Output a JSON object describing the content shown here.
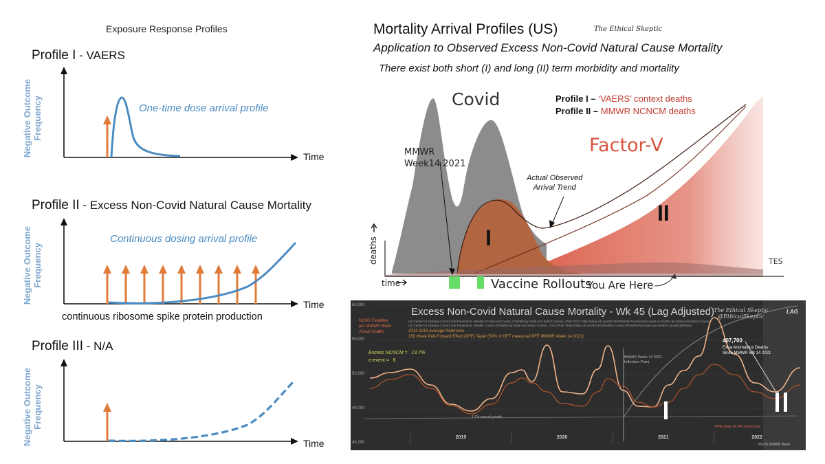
{
  "left": {
    "header": "Exposure Response Profiles",
    "y_axis_label": [
      "Negative Outcome",
      "Frequency"
    ],
    "time_label": "Time",
    "profiles": [
      {
        "title_main": "Profile I",
        "title_rest": " - VAERS",
        "curve_label": "One-time dose arrival profile"
      },
      {
        "title_main": "Profile II",
        "title_rest": " - Excess Non-Covid Natural Cause Mortality",
        "curve_label": "Continuous dosing arrival profile",
        "caption": "continuous ribosome spike protein production"
      },
      {
        "title_main": "Profile III",
        "title_rest": " - N/A"
      }
    ],
    "colors": {
      "curve": "#4a8bc2",
      "arrow": "#e07b39",
      "axis": "#111111"
    }
  },
  "right_top": {
    "title": "Mortality Arrival Profiles (US)",
    "brand": "The Ethical Skeptic",
    "subtitle": "Application to Observed Excess Non-Covid Natural Cause Mortality",
    "note": "There exist both short (I) and long (II) term morbidity and mortality",
    "covid_label": "Covid",
    "legend": [
      {
        "prefix": "Profile I – ",
        "text": "‘VAERS’ context deaths"
      },
      {
        "prefix": "Profile II – ",
        "text": "MMWR NCNCM deaths"
      }
    ],
    "factor_label": "Factor-V",
    "mmwr_label": [
      "MMWR",
      "Week14 2021"
    ],
    "trend_label": [
      "Actual Observed",
      "Arrival Trend"
    ],
    "region_I": "I",
    "region_II": "II",
    "y_axis": "deaths",
    "x_axis": "time",
    "tes": "TES",
    "vaccine_label": "Vaccine Rollouts",
    "here_label": "You Are Here",
    "colors": {
      "covid": "#8c8c8c",
      "profile_I": "#b4623a",
      "factor_v": "#d9543f",
      "legend_red": "#c0392b",
      "rollout": "#66dd66"
    }
  },
  "bottom": {
    "title": "Excess Non-Covid Natural Cause Mortality - Wk 45 (Lag Adjusted)",
    "brand": [
      "The Ethical Skeptic",
      "@EthicalSkeptic"
    ],
    "lag": "LAG",
    "source_lines": [
      "US Center for Disease Control and Prevention: Weekly Provisional Counts of Deaths by State and Select Causes, 2020-2022; https://data.cdc.gov/NCHS/Weekly-Provisional-Counts-of-Deaths-by-State-and-Select-Causes",
      "US Center for Disease Control and Prevention: Weekly Counts of Deaths by State and Select Causes, 2014-2019; https://data.cdc.gov/NCHS/Weekly-Counts-of-Deaths-by-State-and-Select-Causes/3yf8-kanr"
    ],
    "ref_line": "2014-2019 Average Reference",
    "pfe_line": "150 Week Pull-Forward Effect (PFE) Taper (50% of OFT measured PFE MMWR Week 14 2021)",
    "y_title": [
      "NCHS Fatalities",
      "per MMWR Week",
      "Actual Deaths"
    ],
    "excess_label": "Excess NCNCM =",
    "excess_value": "13.7%",
    "sigma_label": "σ-event =",
    "sigma_value": "6",
    "mmwr_label": [
      "MMWR Week 14 2021",
      "Inflection Point"
    ],
    "callout_value": "407,700",
    "callout_text": [
      "Extra Anomalous Deaths",
      "Since MMWR Wk 14 2021"
    ],
    "growth_label": "1.1% annual growth",
    "pfe_only": "PFE Only 14.8% of Excess",
    "source_footer": "NCHS MMWR Week",
    "marker_I": "I",
    "marker_II": "II"
  },
  "chart_data": [
    {
      "type": "line",
      "title": "Excess Non-Covid Natural Cause Mortality - Wk 45 (Lag Adjusted)",
      "ylabel": "NCHS Fatalities per MMWR Week Actual Deaths",
      "ylim": [
        43000,
        63000
      ],
      "yticks": [
        "63,000",
        "58,000",
        "53,000",
        "48,000",
        "43,000"
      ],
      "categories": [
        "2019",
        "2020",
        "2021",
        "2022"
      ],
      "x": [
        2018.6,
        2018.8,
        2019.0,
        2019.2,
        2019.4,
        2019.6,
        2019.8,
        2020.0,
        2020.1,
        2020.2,
        2020.35,
        2020.5,
        2020.7,
        2020.85,
        2020.95,
        2021.1,
        2021.25,
        2021.4,
        2021.55,
        2021.7,
        2021.85,
        2022.0,
        2022.2,
        2022.4,
        2022.6,
        2022.85
      ],
      "series": [
        {
          "name": "Actual Deaths",
          "values": [
            52500,
            53300,
            53800,
            51500,
            48700,
            47700,
            49500,
            53300,
            53700,
            52000,
            57300,
            50500,
            50200,
            53800,
            57200,
            50700,
            48400,
            48300,
            51500,
            53600,
            55700,
            61300,
            56000,
            51800,
            50500,
            54000
          ]
        },
        {
          "name": "2014-2019 Average Reference",
          "values": [
            51000,
            52300,
            53000,
            51000,
            48500,
            47300,
            48700,
            51800,
            52500,
            51800,
            50500,
            48800,
            48400,
            50500,
            52400,
            51300,
            49000,
            48300,
            49000,
            51000,
            53000,
            54500,
            53000,
            50500,
            49500,
            51500
          ]
        }
      ]
    }
  ]
}
